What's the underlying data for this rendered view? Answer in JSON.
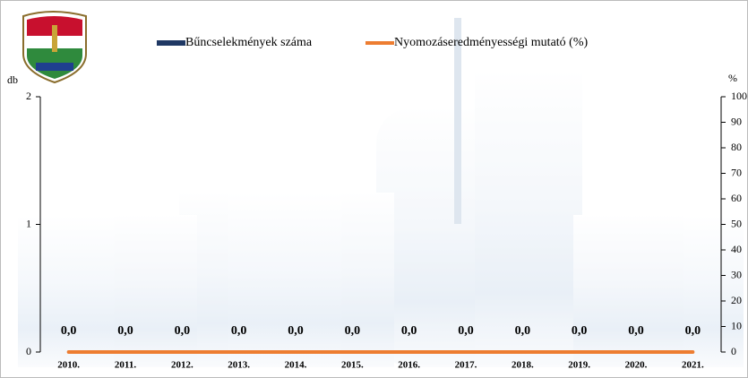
{
  "chart_data": {
    "type": "bar_line",
    "y_label": "db",
    "y2_label": "%",
    "categories": [
      "2010.",
      "2011.",
      "2012.",
      "2013.",
      "2014.",
      "2015.",
      "2016.",
      "2017.",
      "2018.",
      "2019.",
      "2020.",
      "2021."
    ],
    "series": [
      {
        "name": "Bűncselekmények száma",
        "color": "#1f3864",
        "type": "bar",
        "values": [
          0,
          0,
          0,
          0,
          0,
          0,
          0,
          0,
          0,
          0,
          0,
          0
        ]
      },
      {
        "name": "Nyomozáseredményességi mutató (%)",
        "color": "#ed7d31",
        "type": "line",
        "axis": "y2",
        "values": [
          0,
          0,
          0,
          0,
          0,
          0,
          0,
          0,
          0,
          0,
          0,
          0
        ],
        "value_labels": [
          "0,0",
          "0,0",
          "0,0",
          "0,0",
          "0,0",
          "0,0",
          "0,0",
          "0,0",
          "0,0",
          "0,0",
          "0,0",
          "0,0"
        ]
      }
    ],
    "ylim": [
      0,
      2
    ],
    "yticks": [
      0,
      1,
      2
    ],
    "y2lim": [
      0,
      100
    ],
    "y2ticks": [
      0,
      10,
      20,
      30,
      40,
      50,
      60,
      70,
      80,
      90,
      100
    ]
  }
}
